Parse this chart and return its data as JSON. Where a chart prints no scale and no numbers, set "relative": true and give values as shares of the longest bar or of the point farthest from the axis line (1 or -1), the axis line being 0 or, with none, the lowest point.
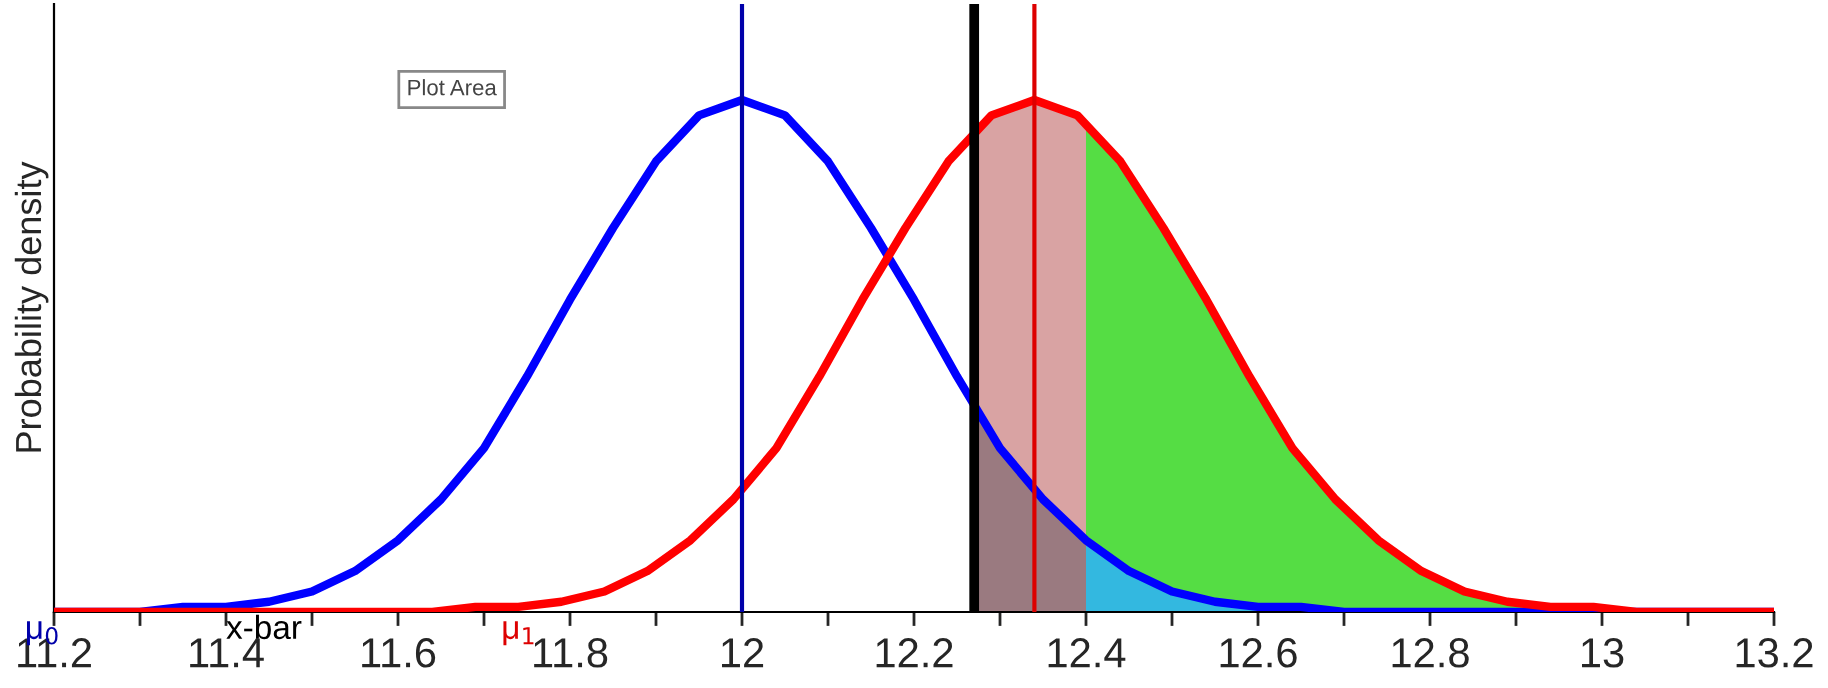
{
  "chart_data": {
    "type": "line",
    "ylabel": "Probability density",
    "relative": true,
    "xlim": [
      11.2,
      13.2
    ],
    "xticks": [
      11.2,
      {
        "value": 11.3,
        "label": null
      },
      11.4,
      {
        "value": 11.5,
        "label": null
      },
      11.6,
      {
        "value": 11.7,
        "label": null
      },
      11.8,
      {
        "value": 11.9,
        "label": null
      },
      12,
      {
        "value": 12.1,
        "label": null
      },
      12.2,
      {
        "value": 12.3,
        "label": null
      },
      12.4,
      {
        "value": 12.5,
        "label": null
      },
      12.6,
      {
        "value": 12.7,
        "label": null
      },
      12.8,
      {
        "value": 12.9,
        "label": null
      },
      13,
      {
        "value": 13.1,
        "label": null
      },
      13.2
    ],
    "series": [
      {
        "type": "area",
        "color": "#d9a3a3",
        "x": [
          12.27,
          12.3,
          12.34,
          12.4
        ],
        "values": [
          0.94,
          0.98,
          1,
          0.96
        ]
      },
      {
        "type": "area",
        "color": "#55dd44",
        "x": [
          12.4,
          12.44,
          12.49,
          12.54,
          12.59,
          12.64,
          12.69,
          12.74,
          12.79,
          12.84,
          12.89,
          12.94,
          12.99,
          13.04,
          13.2
        ],
        "values": [
          0.96,
          0.88,
          0.75,
          0.61,
          0.46,
          0.32,
          0.22,
          0.14,
          0.08,
          0.04,
          0.02,
          0.01,
          0.01,
          0,
          0
        ]
      },
      {
        "type": "area",
        "color": "#9a7a80",
        "x": [
          12.27,
          12.3,
          12.35,
          12.4
        ],
        "values": [
          0.4,
          0.32,
          0.22,
          0.14
        ]
      },
      {
        "type": "area",
        "color": "#33b8e0",
        "x": [
          12.4,
          12.45,
          12.5,
          12.55,
          12.6,
          12.65,
          12.7,
          13.2
        ],
        "values": [
          0.14,
          0.08,
          0.04,
          0.02,
          0.01,
          0.01,
          0,
          0
        ]
      },
      {
        "color": "#0000ff",
        "x": [
          11.2,
          11.25,
          11.3,
          11.35,
          11.4,
          11.45,
          11.5,
          11.55,
          11.6,
          11.65,
          11.7,
          11.75,
          11.8,
          11.85,
          11.9,
          11.95,
          12,
          12.05,
          12.1,
          12.15,
          12.2,
          12.25,
          12.3,
          12.35,
          12.4,
          12.45,
          12.5,
          12.55,
          12.6,
          12.65,
          12.7,
          13.2
        ],
        "values": [
          0,
          0,
          0,
          0.01,
          0.01,
          0.02,
          0.04,
          0.08,
          0.14,
          0.22,
          0.32,
          0.46,
          0.61,
          0.75,
          0.88,
          0.97,
          1,
          0.97,
          0.88,
          0.75,
          0.61,
          0.46,
          0.32,
          0.22,
          0.14,
          0.08,
          0.04,
          0.02,
          0.01,
          0.01,
          0,
          0
        ]
      },
      {
        "color": "#ff0000",
        "x": [
          11.2,
          11.54,
          11.59,
          11.64,
          11.69,
          11.74,
          11.79,
          11.84,
          11.89,
          11.94,
          11.99,
          12.04,
          12.09,
          12.14,
          12.19,
          12.24,
          12.29,
          12.34,
          12.39,
          12.44,
          12.49,
          12.54,
          12.59,
          12.64,
          12.69,
          12.74,
          12.79,
          12.84,
          12.89,
          12.94,
          12.99,
          13.04,
          13.2
        ],
        "values": [
          0,
          0,
          0,
          0,
          0.01,
          0.01,
          0.02,
          0.04,
          0.08,
          0.14,
          0.22,
          0.32,
          0.46,
          0.61,
          0.75,
          0.88,
          0.97,
          1,
          0.97,
          0.88,
          0.75,
          0.61,
          0.46,
          0.32,
          0.22,
          0.14,
          0.08,
          0.04,
          0.02,
          0.01,
          0.01,
          0,
          0
        ]
      }
    ],
    "ref_lines": [
      {
        "axis": "x",
        "value": 12,
        "label": "μ$_{0}$",
        "color": "#0000aa"
      },
      {
        "axis": "x",
        "value": 12.27,
        "label": "x-bar",
        "color": "#000000"
      },
      {
        "axis": "x",
        "value": 12.34,
        "label": "μ$_{1}$",
        "color": "#dd0000"
      }
    ],
    "annotations": [
      "Plot Area"
    ],
    "grid": false,
    "legend": false
  }
}
